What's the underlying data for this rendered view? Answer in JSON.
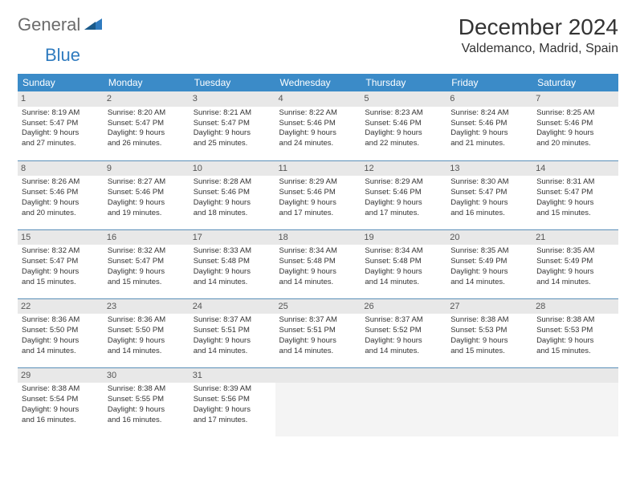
{
  "logo": {
    "general": "General",
    "blue": "Blue"
  },
  "title": "December 2024",
  "location": "Valdemanco, Madrid, Spain",
  "colors": {
    "header_bg": "#3b8bc8",
    "header_text": "#ffffff",
    "daynum_bg": "#e8e8e8",
    "row_divider": "#5a8fb8",
    "logo_gray": "#6b6b6b",
    "logo_blue": "#2f7bbf"
  },
  "weekdays": [
    "Sunday",
    "Monday",
    "Tuesday",
    "Wednesday",
    "Thursday",
    "Friday",
    "Saturday"
  ],
  "days": [
    {
      "n": "1",
      "sunrise": "Sunrise: 8:19 AM",
      "sunset": "Sunset: 5:47 PM",
      "day1": "Daylight: 9 hours",
      "day2": "and 27 minutes."
    },
    {
      "n": "2",
      "sunrise": "Sunrise: 8:20 AM",
      "sunset": "Sunset: 5:47 PM",
      "day1": "Daylight: 9 hours",
      "day2": "and 26 minutes."
    },
    {
      "n": "3",
      "sunrise": "Sunrise: 8:21 AM",
      "sunset": "Sunset: 5:47 PM",
      "day1": "Daylight: 9 hours",
      "day2": "and 25 minutes."
    },
    {
      "n": "4",
      "sunrise": "Sunrise: 8:22 AM",
      "sunset": "Sunset: 5:46 PM",
      "day1": "Daylight: 9 hours",
      "day2": "and 24 minutes."
    },
    {
      "n": "5",
      "sunrise": "Sunrise: 8:23 AM",
      "sunset": "Sunset: 5:46 PM",
      "day1": "Daylight: 9 hours",
      "day2": "and 22 minutes."
    },
    {
      "n": "6",
      "sunrise": "Sunrise: 8:24 AM",
      "sunset": "Sunset: 5:46 PM",
      "day1": "Daylight: 9 hours",
      "day2": "and 21 minutes."
    },
    {
      "n": "7",
      "sunrise": "Sunrise: 8:25 AM",
      "sunset": "Sunset: 5:46 PM",
      "day1": "Daylight: 9 hours",
      "day2": "and 20 minutes."
    },
    {
      "n": "8",
      "sunrise": "Sunrise: 8:26 AM",
      "sunset": "Sunset: 5:46 PM",
      "day1": "Daylight: 9 hours",
      "day2": "and 20 minutes."
    },
    {
      "n": "9",
      "sunrise": "Sunrise: 8:27 AM",
      "sunset": "Sunset: 5:46 PM",
      "day1": "Daylight: 9 hours",
      "day2": "and 19 minutes."
    },
    {
      "n": "10",
      "sunrise": "Sunrise: 8:28 AM",
      "sunset": "Sunset: 5:46 PM",
      "day1": "Daylight: 9 hours",
      "day2": "and 18 minutes."
    },
    {
      "n": "11",
      "sunrise": "Sunrise: 8:29 AM",
      "sunset": "Sunset: 5:46 PM",
      "day1": "Daylight: 9 hours",
      "day2": "and 17 minutes."
    },
    {
      "n": "12",
      "sunrise": "Sunrise: 8:29 AM",
      "sunset": "Sunset: 5:46 PM",
      "day1": "Daylight: 9 hours",
      "day2": "and 17 minutes."
    },
    {
      "n": "13",
      "sunrise": "Sunrise: 8:30 AM",
      "sunset": "Sunset: 5:47 PM",
      "day1": "Daylight: 9 hours",
      "day2": "and 16 minutes."
    },
    {
      "n": "14",
      "sunrise": "Sunrise: 8:31 AM",
      "sunset": "Sunset: 5:47 PM",
      "day1": "Daylight: 9 hours",
      "day2": "and 15 minutes."
    },
    {
      "n": "15",
      "sunrise": "Sunrise: 8:32 AM",
      "sunset": "Sunset: 5:47 PM",
      "day1": "Daylight: 9 hours",
      "day2": "and 15 minutes."
    },
    {
      "n": "16",
      "sunrise": "Sunrise: 8:32 AM",
      "sunset": "Sunset: 5:47 PM",
      "day1": "Daylight: 9 hours",
      "day2": "and 15 minutes."
    },
    {
      "n": "17",
      "sunrise": "Sunrise: 8:33 AM",
      "sunset": "Sunset: 5:48 PM",
      "day1": "Daylight: 9 hours",
      "day2": "and 14 minutes."
    },
    {
      "n": "18",
      "sunrise": "Sunrise: 8:34 AM",
      "sunset": "Sunset: 5:48 PM",
      "day1": "Daylight: 9 hours",
      "day2": "and 14 minutes."
    },
    {
      "n": "19",
      "sunrise": "Sunrise: 8:34 AM",
      "sunset": "Sunset: 5:48 PM",
      "day1": "Daylight: 9 hours",
      "day2": "and 14 minutes."
    },
    {
      "n": "20",
      "sunrise": "Sunrise: 8:35 AM",
      "sunset": "Sunset: 5:49 PM",
      "day1": "Daylight: 9 hours",
      "day2": "and 14 minutes."
    },
    {
      "n": "21",
      "sunrise": "Sunrise: 8:35 AM",
      "sunset": "Sunset: 5:49 PM",
      "day1": "Daylight: 9 hours",
      "day2": "and 14 minutes."
    },
    {
      "n": "22",
      "sunrise": "Sunrise: 8:36 AM",
      "sunset": "Sunset: 5:50 PM",
      "day1": "Daylight: 9 hours",
      "day2": "and 14 minutes."
    },
    {
      "n": "23",
      "sunrise": "Sunrise: 8:36 AM",
      "sunset": "Sunset: 5:50 PM",
      "day1": "Daylight: 9 hours",
      "day2": "and 14 minutes."
    },
    {
      "n": "24",
      "sunrise": "Sunrise: 8:37 AM",
      "sunset": "Sunset: 5:51 PM",
      "day1": "Daylight: 9 hours",
      "day2": "and 14 minutes."
    },
    {
      "n": "25",
      "sunrise": "Sunrise: 8:37 AM",
      "sunset": "Sunset: 5:51 PM",
      "day1": "Daylight: 9 hours",
      "day2": "and 14 minutes."
    },
    {
      "n": "26",
      "sunrise": "Sunrise: 8:37 AM",
      "sunset": "Sunset: 5:52 PM",
      "day1": "Daylight: 9 hours",
      "day2": "and 14 minutes."
    },
    {
      "n": "27",
      "sunrise": "Sunrise: 8:38 AM",
      "sunset": "Sunset: 5:53 PM",
      "day1": "Daylight: 9 hours",
      "day2": "and 15 minutes."
    },
    {
      "n": "28",
      "sunrise": "Sunrise: 8:38 AM",
      "sunset": "Sunset: 5:53 PM",
      "day1": "Daylight: 9 hours",
      "day2": "and 15 minutes."
    },
    {
      "n": "29",
      "sunrise": "Sunrise: 8:38 AM",
      "sunset": "Sunset: 5:54 PM",
      "day1": "Daylight: 9 hours",
      "day2": "and 16 minutes."
    },
    {
      "n": "30",
      "sunrise": "Sunrise: 8:38 AM",
      "sunset": "Sunset: 5:55 PM",
      "day1": "Daylight: 9 hours",
      "day2": "and 16 minutes."
    },
    {
      "n": "31",
      "sunrise": "Sunrise: 8:39 AM",
      "sunset": "Sunset: 5:56 PM",
      "day1": "Daylight: 9 hours",
      "day2": "and 17 minutes."
    }
  ]
}
